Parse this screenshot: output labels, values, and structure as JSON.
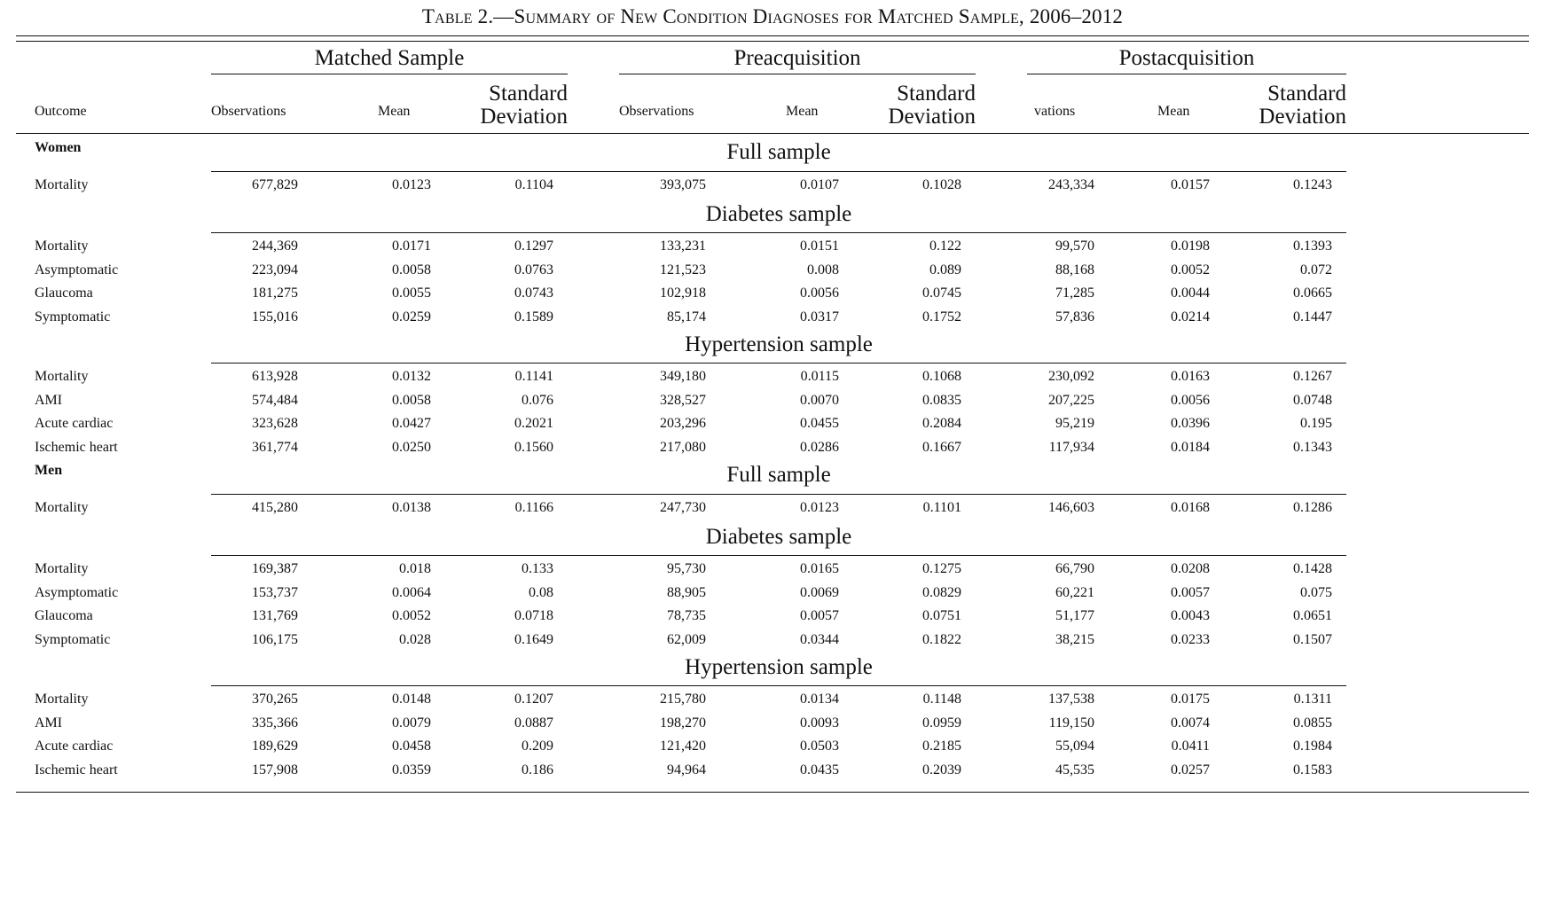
{
  "caption": "Table 2.—Summary of New Condition Diagnoses for Matched Sample, 2006–2012",
  "groups": [
    "Matched Sample",
    "Preacquisition",
    "Postacquisition"
  ],
  "col_headers": {
    "outcome": "Outcome",
    "matched": {
      "obs": "Observations",
      "mean": "Mean",
      "sd_1": "Standard",
      "sd_2": "Deviation"
    },
    "pre": {
      "obs": "Observations",
      "mean": "Mean",
      "sd_1": "Standard",
      "sd_2": "Deviation"
    },
    "post": {
      "obs": "vations",
      "mean": "Mean",
      "sd_1": "Standard",
      "sd_2": "Deviation"
    }
  },
  "sections": [
    {
      "sex": "Women",
      "panels": [
        {
          "title": "Full sample",
          "rows": [
            [
              "Mortality",
              "677,829",
              "0.0123",
              "0.1104",
              "393,075",
              "0.0107",
              "0.1028",
              "243,334",
              "0.0157",
              "0.1243"
            ]
          ]
        },
        {
          "title": "Diabetes sample",
          "rows": [
            [
              "Mortality",
              "244,369",
              "0.0171",
              "0.1297",
              "133,231",
              "0.0151",
              "0.122",
              "99,570",
              "0.0198",
              "0.1393"
            ],
            [
              "Asymptomatic",
              "223,094",
              "0.0058",
              "0.0763",
              "121,523",
              "0.008",
              "0.089",
              "88,168",
              "0.0052",
              "0.072"
            ],
            [
              "Glaucoma",
              "181,275",
              "0.0055",
              "0.0743",
              "102,918",
              "0.0056",
              "0.0745",
              "71,285",
              "0.0044",
              "0.0665"
            ],
            [
              "Symptomatic",
              "155,016",
              "0.0259",
              "0.1589",
              "85,174",
              "0.0317",
              "0.1752",
              "57,836",
              "0.0214",
              "0.1447"
            ]
          ]
        },
        {
          "title": "Hypertension sample",
          "rows": [
            [
              "Mortality",
              "613,928",
              "0.0132",
              "0.1141",
              "349,180",
              "0.0115",
              "0.1068",
              "230,092",
              "0.0163",
              "0.1267"
            ],
            [
              "AMI",
              "574,484",
              "0.0058",
              "0.076",
              "328,527",
              "0.0070",
              "0.0835",
              "207,225",
              "0.0056",
              "0.0748"
            ],
            [
              "Acute cardiac",
              "323,628",
              "0.0427",
              "0.2021",
              "203,296",
              "0.0455",
              "0.2084",
              "95,219",
              "0.0396",
              "0.195"
            ],
            [
              "Ischemic heart",
              "361,774",
              "0.0250",
              "0.1560",
              "217,080",
              "0.0286",
              "0.1667",
              "117,934",
              "0.0184",
              "0.1343"
            ]
          ]
        }
      ]
    },
    {
      "sex": "Men",
      "panels": [
        {
          "title": "Full sample",
          "rows": [
            [
              "Mortality",
              "415,280",
              "0.0138",
              "0.1166",
              "247,730",
              "0.0123",
              "0.1101",
              "146,603",
              "0.0168",
              "0.1286"
            ]
          ]
        },
        {
          "title": "Diabetes sample",
          "rows": [
            [
              "Mortality",
              "169,387",
              "0.018",
              "0.133",
              "95,730",
              "0.0165",
              "0.1275",
              "66,790",
              "0.0208",
              "0.1428"
            ],
            [
              "Asymptomatic",
              "153,737",
              "0.0064",
              "0.08",
              "88,905",
              "0.0069",
              "0.0829",
              "60,221",
              "0.0057",
              "0.075"
            ],
            [
              "Glaucoma",
              "131,769",
              "0.0052",
              "0.0718",
              "78,735",
              "0.0057",
              "0.0751",
              "51,177",
              "0.0043",
              "0.0651"
            ],
            [
              "Symptomatic",
              "106,175",
              "0.028",
              "0.1649",
              "62,009",
              "0.0344",
              "0.1822",
              "38,215",
              "0.0233",
              "0.1507"
            ]
          ]
        },
        {
          "title": "Hypertension sample",
          "rows": [
            [
              "Mortality",
              "370,265",
              "0.0148",
              "0.1207",
              "215,780",
              "0.0134",
              "0.1148",
              "137,538",
              "0.0175",
              "0.1311"
            ],
            [
              "AMI",
              "335,366",
              "0.0079",
              "0.0887",
              "198,270",
              "0.0093",
              "0.0959",
              "119,150",
              "0.0074",
              "0.0855"
            ],
            [
              "Acute cardiac",
              "189,629",
              "0.0458",
              "0.209",
              "121,420",
              "0.0503",
              "0.2185",
              "55,094",
              "0.0411",
              "0.1984"
            ],
            [
              "Ischemic heart",
              "157,908",
              "0.0359",
              "0.186",
              "94,964",
              "0.0435",
              "0.2039",
              "45,535",
              "0.0257",
              "0.1583"
            ]
          ]
        }
      ]
    }
  ]
}
